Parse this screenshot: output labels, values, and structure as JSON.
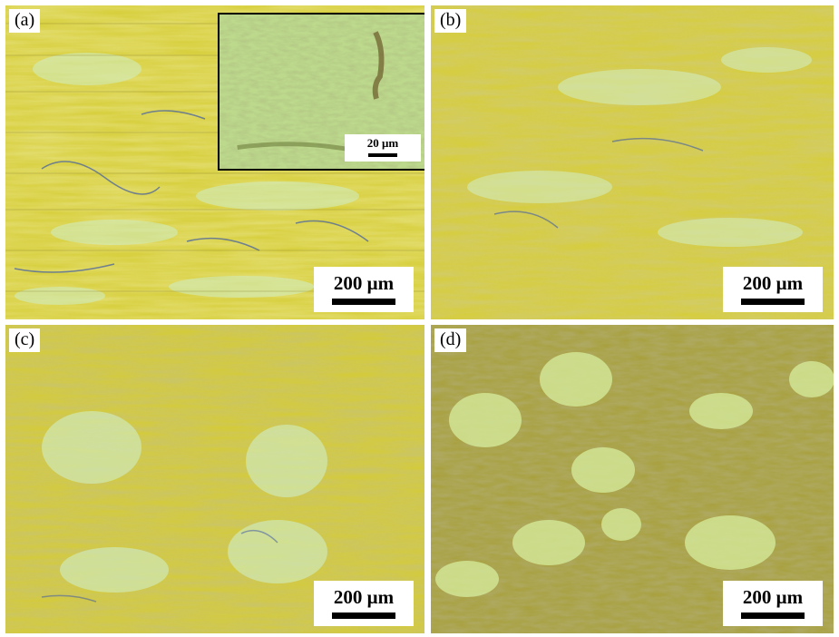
{
  "panels": [
    {
      "label": "(a)",
      "scale": "200 μm"
    },
    {
      "label": "(b)",
      "scale": "200 μm"
    },
    {
      "label": "(c)",
      "scale": "200 μm"
    },
    {
      "label": "(d)",
      "scale": "200 μm"
    }
  ],
  "inset": {
    "scale": "20 μm"
  },
  "colors": {
    "yellow": "#d9cf3a",
    "pale_cyan": "#c8ecc8",
    "olive_dark": "#8f8a3a",
    "grain_boundary": "#3a5aa8",
    "inset_green": "#b9d98a",
    "inset_dark": "#6e7d3c"
  }
}
